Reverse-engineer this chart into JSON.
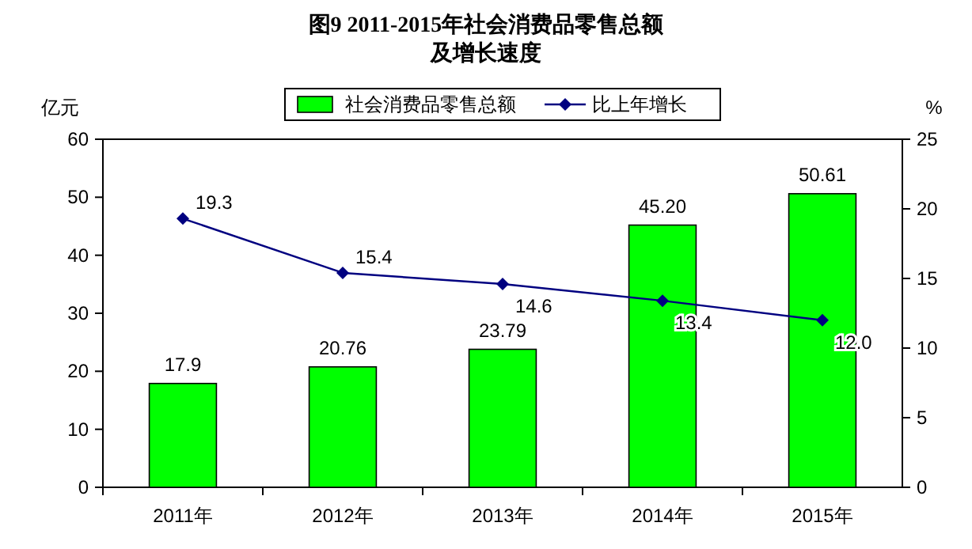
{
  "chart_data": {
    "type": "bar",
    "title": "图9  2011-2015年社会消费品零售总额",
    "subtitle": "及增长速度",
    "ylabel": "亿元",
    "y2label": "%",
    "categories": [
      "2011年",
      "2012年",
      "2013年",
      "2014年",
      "2015年"
    ],
    "series": [
      {
        "name": "社会消费品零售总额",
        "color": "#00ff00",
        "values": [
          17.9,
          20.76,
          23.79,
          45.2,
          50.61
        ],
        "value_labels": [
          "17.9",
          "20.76",
          "23.79",
          "45.20",
          "50.61"
        ]
      },
      {
        "name": "比上年增长",
        "type": "line",
        "axis": "y2",
        "color": "#000080",
        "marker": "diamond",
        "values": [
          19.3,
          15.4,
          14.6,
          13.4,
          12.0
        ],
        "value_labels": [
          "19.3",
          "15.4",
          "14.6",
          "13.4",
          "12.0"
        ]
      }
    ],
    "ylim": [
      0,
      60
    ],
    "yticks": [
      0,
      10,
      20,
      30,
      40,
      50,
      60
    ],
    "y2lim": [
      0,
      25
    ],
    "y2ticks": [
      0,
      5,
      10,
      15,
      20,
      25
    ],
    "legend": "top",
    "grid": false
  }
}
